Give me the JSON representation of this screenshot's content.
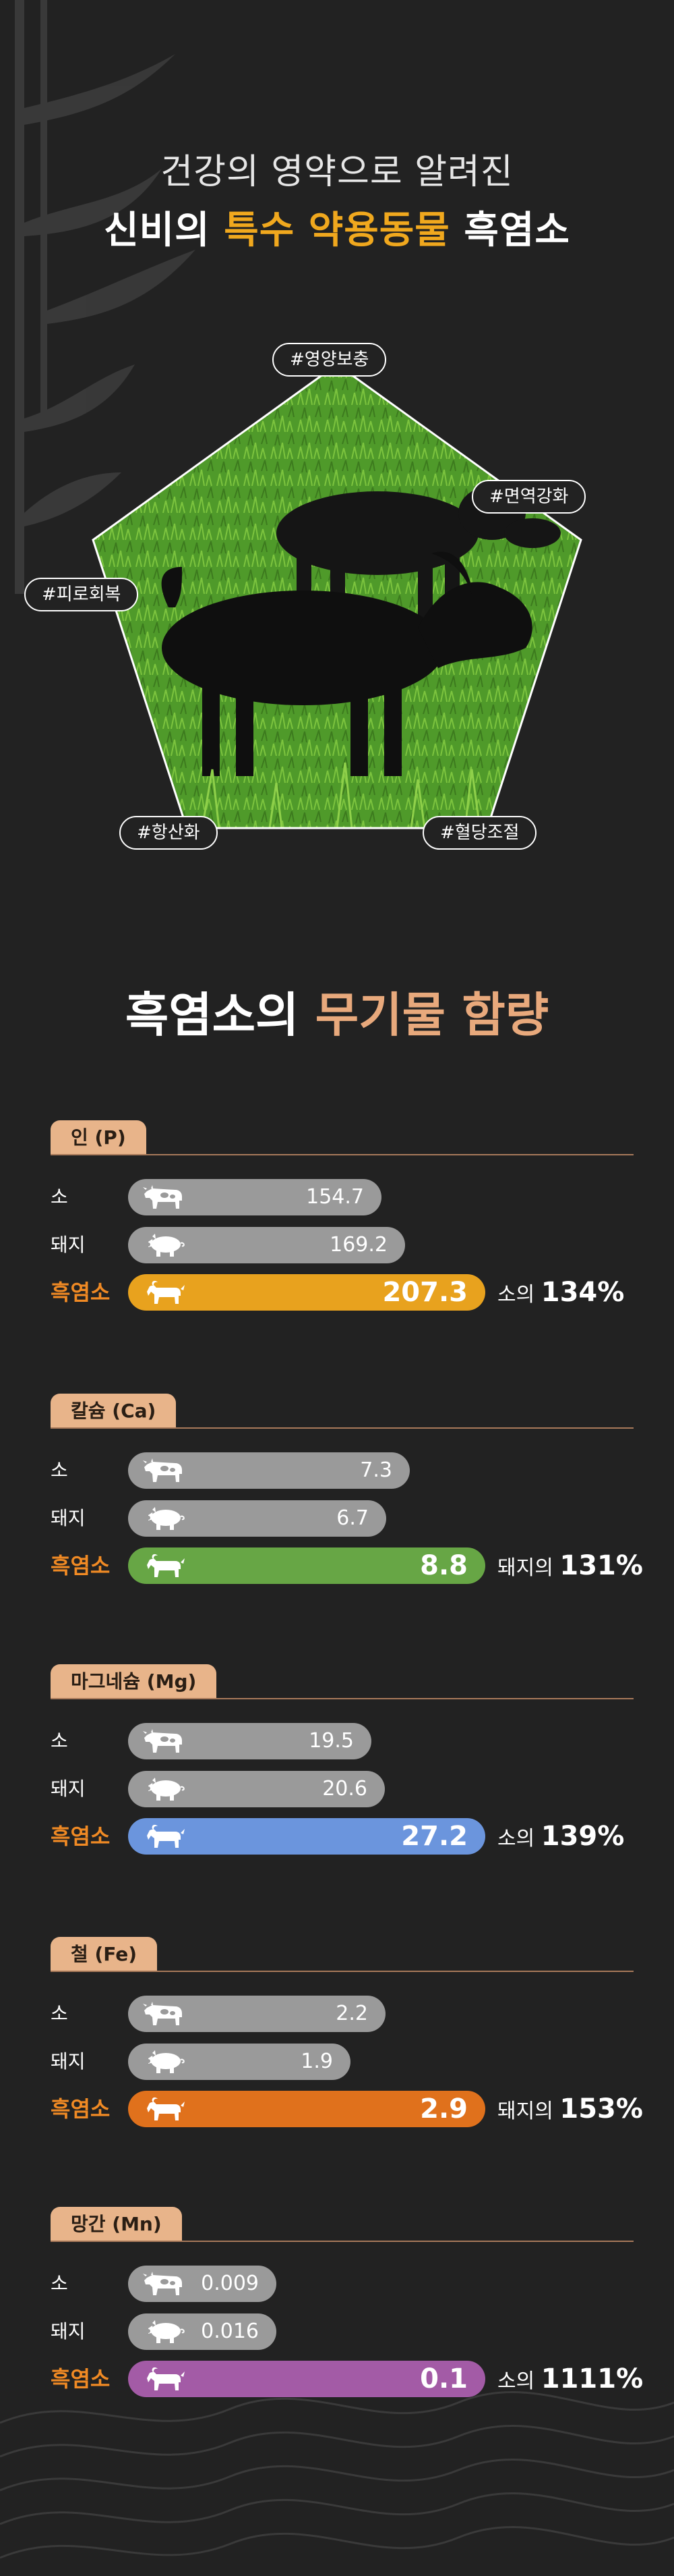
{
  "header": {
    "line1": "건강의 영약으로 알려진",
    "line2_white": "신비의",
    "line2_orange": "특수 약용동물",
    "line2_white2": "흑염소"
  },
  "tags": [
    "#영양보충",
    "#면역강화",
    "#피로회복",
    "#항산화",
    "#혈당조절"
  ],
  "section_title": {
    "white": "흑염소의",
    "orange": "무기물 함량"
  },
  "minerals": [
    {
      "name": "인 (P)",
      "rows": [
        {
          "label": "소",
          "icon": "cow-icon",
          "value": "154.7"
        },
        {
          "label": "돼지",
          "icon": "pig-icon",
          "value": "169.2"
        },
        {
          "label": "흑염소",
          "icon": "goat-icon",
          "value": "207.3"
        }
      ],
      "compare_prefix": "소의",
      "compare_pct": "134%",
      "accent": "#e8a21e"
    },
    {
      "name": "칼슘 (Ca)",
      "rows": [
        {
          "label": "소",
          "icon": "cow-icon",
          "value": "7.3"
        },
        {
          "label": "돼지",
          "icon": "pig-icon",
          "value": "6.7"
        },
        {
          "label": "흑염소",
          "icon": "goat-icon",
          "value": "8.8"
        }
      ],
      "compare_prefix": "돼지의",
      "compare_pct": "131%",
      "accent": "#67a645"
    },
    {
      "name": "마그네슘 (Mg)",
      "rows": [
        {
          "label": "소",
          "icon": "cow-icon",
          "value": "19.5"
        },
        {
          "label": "돼지",
          "icon": "pig-icon",
          "value": "20.6"
        },
        {
          "label": "흑염소",
          "icon": "goat-icon",
          "value": "27.2"
        }
      ],
      "compare_prefix": "소의",
      "compare_pct": "139%",
      "accent": "#6b95dd"
    },
    {
      "name": "철 (Fe)",
      "rows": [
        {
          "label": "소",
          "icon": "cow-icon",
          "value": "2.2"
        },
        {
          "label": "돼지",
          "icon": "pig-icon",
          "value": "1.9"
        },
        {
          "label": "흑염소",
          "icon": "goat-icon",
          "value": "2.9"
        }
      ],
      "compare_prefix": "돼지의",
      "compare_pct": "153%",
      "accent": "#e0711c"
    },
    {
      "name": "망간 (Mn)",
      "rows": [
        {
          "label": "소",
          "icon": "cow-icon",
          "value": "0.009"
        },
        {
          "label": "돼지",
          "icon": "pig-icon",
          "value": "0.016"
        },
        {
          "label": "흑염소",
          "icon": "goat-icon",
          "value": "0.1"
        }
      ],
      "compare_prefix": "소의",
      "compare_pct": "1111%",
      "accent": "#a35ba6"
    }
  ]
}
